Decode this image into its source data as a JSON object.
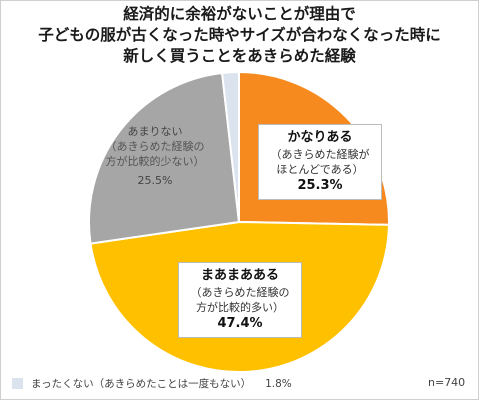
{
  "chart_data": {
    "type": "pie",
    "title_lines": [
      "経済的に余裕がないことが理由で",
      "子どもの服が古くなった時やサイズが合わなくなった時に",
      "新しく買うことをあきらめた経験"
    ],
    "slices": [
      {
        "label": "かなりある",
        "note": [
          "（あきらめた経験が",
          "ほとんどである）"
        ],
        "value": 25.3,
        "value_text": "25.3%",
        "color": "#f68a1e"
      },
      {
        "label": "まあまあある",
        "note": [
          "（あきらめた経験の",
          "方が比較的多い）"
        ],
        "value": 47.4,
        "value_text": "47.4%",
        "color": "#ffc000"
      },
      {
        "label": "あまりない",
        "note": [
          "（あきらめた経験の",
          "方が比較的少ない）"
        ],
        "value": 25.5,
        "value_text": "25.5%",
        "color": "#a6a6a6"
      },
      {
        "label": "まったくない（あきらめたことは一度もない）",
        "value": 1.8,
        "value_text": "1.8%",
        "color": "#dbe3ee"
      }
    ],
    "n_label": "n=740"
  }
}
